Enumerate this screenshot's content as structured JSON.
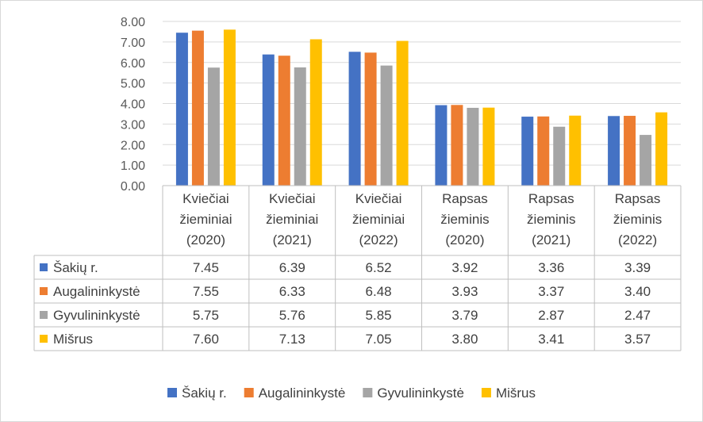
{
  "colors": {
    "series": [
      "#4472c4",
      "#ed7d31",
      "#a5a5a5",
      "#ffc000"
    ],
    "grid": "#d9d9d9",
    "table_border": "#bfbfbf",
    "text": "#404040",
    "axis_text": "#595959"
  },
  "chart_data": {
    "type": "bar",
    "title": "",
    "xlabel": "",
    "ylabel": "",
    "ylim": [
      0,
      8
    ],
    "y_ticks": [
      "0.00",
      "1.00",
      "2.00",
      "3.00",
      "4.00",
      "5.00",
      "6.00",
      "7.00",
      "8.00"
    ],
    "grid": true,
    "legend_position": "bottom",
    "data_table": true,
    "categories": [
      [
        "Kviečiai",
        "žieminiai",
        "(2020)"
      ],
      [
        "Kviečiai",
        "žieminiai",
        "(2021)"
      ],
      [
        "Kviečiai",
        "žieminiai",
        "(2022)"
      ],
      [
        "Rapsas",
        "žieminis",
        "(2020)"
      ],
      [
        "Rapsas",
        "žieminis",
        "(2021)"
      ],
      [
        "Rapsas",
        "žieminis",
        "(2022)"
      ]
    ],
    "series": [
      {
        "name": "Šakių r.",
        "values": [
          7.45,
          6.39,
          6.52,
          3.92,
          3.36,
          3.39
        ],
        "labels": [
          "7.45",
          "6.39",
          "6.52",
          "3.92",
          "3.36",
          "3.39"
        ]
      },
      {
        "name": "Augalininkystė",
        "values": [
          7.55,
          6.33,
          6.48,
          3.93,
          3.37,
          3.4
        ],
        "labels": [
          "7.55",
          "6.33",
          "6.48",
          "3.93",
          "3.37",
          "3.40"
        ]
      },
      {
        "name": "Gyvulininkystė",
        "values": [
          5.75,
          5.76,
          5.85,
          3.79,
          2.87,
          2.47
        ],
        "labels": [
          "5.75",
          "5.76",
          "5.85",
          "3.79",
          "2.87",
          "2.47"
        ]
      },
      {
        "name": "Mišrus",
        "values": [
          7.6,
          7.13,
          7.05,
          3.8,
          3.41,
          3.57
        ],
        "labels": [
          "7.60",
          "7.13",
          "7.05",
          "3.80",
          "3.41",
          "3.57"
        ]
      }
    ]
  }
}
